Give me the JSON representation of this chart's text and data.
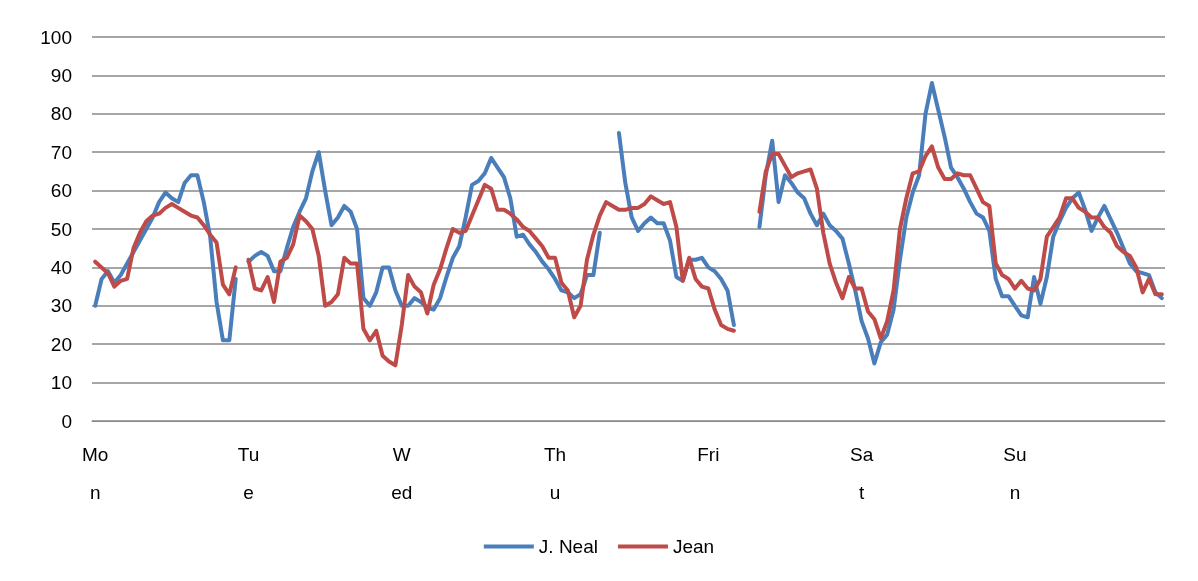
{
  "chart_data": {
    "type": "line",
    "categories": [
      "Mon",
      null,
      null,
      null,
      null,
      null,
      null,
      null,
      null,
      null,
      null,
      null,
      null,
      null,
      null,
      null,
      null,
      null,
      null,
      null,
      null,
      null,
      null,
      null,
      "Tue",
      null,
      null,
      null,
      null,
      null,
      null,
      null,
      null,
      null,
      null,
      null,
      null,
      null,
      null,
      null,
      null,
      null,
      null,
      null,
      null,
      null,
      null,
      null,
      "Wed",
      null,
      null,
      null,
      null,
      null,
      null,
      null,
      null,
      null,
      null,
      null,
      null,
      null,
      null,
      null,
      null,
      null,
      null,
      null,
      null,
      null,
      null,
      null,
      "Thu",
      null,
      null,
      null,
      null,
      null,
      null,
      null,
      null,
      null,
      null,
      null,
      null,
      null,
      null,
      null,
      null,
      null,
      null,
      null,
      null,
      null,
      null,
      null,
      "Fri",
      null,
      null,
      null,
      null,
      null,
      null,
      null,
      null,
      null,
      null,
      null,
      null,
      null,
      null,
      null,
      null,
      null,
      null,
      null,
      null,
      null,
      null,
      null,
      "Sat",
      null,
      null,
      null,
      null,
      null,
      null,
      null,
      null,
      null,
      null,
      null,
      null,
      null,
      null,
      null,
      null,
      null,
      null,
      null,
      null,
      null,
      null,
      null,
      "Sun",
      null,
      null,
      null,
      null,
      null,
      null,
      null,
      null,
      null,
      null,
      null,
      null,
      null,
      null,
      null,
      null,
      null,
      null,
      null,
      null,
      null,
      null,
      null
    ],
    "series": [
      {
        "name": "J. Neal",
        "color": "#4a7ebb",
        "values": [
          30,
          37,
          39,
          36,
          38,
          41,
          44,
          47,
          50,
          53,
          57,
          59.5,
          58,
          57,
          62,
          64,
          64,
          57,
          48,
          31,
          21,
          21,
          37,
          null,
          41.5,
          43,
          44,
          43,
          39,
          39,
          45,
          50.5,
          54.5,
          58,
          65,
          70,
          60,
          51,
          53,
          56,
          54.5,
          50,
          32,
          30,
          33.5,
          40,
          40,
          34,
          30,
          30,
          32,
          31,
          29.5,
          29,
          32,
          37.5,
          42.5,
          45.5,
          53,
          61.5,
          62.5,
          64.5,
          68.5,
          66,
          63.5,
          58,
          48,
          48.5,
          46,
          44,
          41.5,
          39.5,
          37,
          34,
          33.5,
          32,
          33,
          38,
          38,
          49,
          null,
          null,
          75,
          62,
          53,
          49.5,
          51.5,
          53,
          51.5,
          51.5,
          47,
          37.5,
          36.5,
          42,
          42,
          42.5,
          40,
          39,
          37,
          34,
          25,
          null,
          null,
          null,
          50.5,
          64,
          73,
          57,
          64,
          62,
          59.5,
          58,
          54,
          51,
          54,
          51,
          49.5,
          47.5,
          41,
          34,
          26,
          21.5,
          15,
          20.5,
          22.5,
          29,
          42,
          53,
          59.5,
          64,
          80,
          88,
          81,
          74,
          66,
          63.5,
          60.5,
          57,
          54,
          53,
          49.5,
          37,
          32.5,
          32.5,
          30,
          27.5,
          27,
          37.5,
          30.5,
          37.5,
          48,
          52,
          55.5,
          58,
          59.5,
          55,
          49.5,
          53,
          56,
          52.5,
          49,
          45,
          41,
          39,
          38.5,
          38,
          33.5,
          32
        ]
      },
      {
        "name": "Jean",
        "color": "#be4b48",
        "values": [
          41.5,
          40,
          38.5,
          35,
          36.5,
          37,
          45,
          49,
          52,
          53.5,
          54,
          55.5,
          56.5,
          55.5,
          54.5,
          53.5,
          53,
          51,
          48.5,
          46.5,
          35.5,
          33,
          40,
          null,
          42,
          34.5,
          34,
          37.5,
          31,
          41.5,
          42.5,
          46,
          53.5,
          52,
          50,
          43,
          30,
          31,
          33,
          42.5,
          41,
          41,
          24,
          21,
          23.5,
          17,
          15.5,
          14.5,
          25,
          38,
          35,
          33.5,
          28,
          35.5,
          39.5,
          45,
          50,
          49,
          49.5,
          53.5,
          57.5,
          61.5,
          60.5,
          55,
          55,
          54,
          52.5,
          50.5,
          49.5,
          47.5,
          45.5,
          42.5,
          42.5,
          36,
          34,
          27,
          30,
          42,
          48.5,
          53.5,
          57,
          56,
          55,
          55,
          55.5,
          55.5,
          56.5,
          58.5,
          57.5,
          56.5,
          57,
          50.5,
          36.5,
          42.5,
          37,
          35,
          34.5,
          29,
          25,
          24,
          23.5,
          null,
          null,
          null,
          54.5,
          65,
          69.5,
          69.5,
          66.5,
          63.5,
          64.5,
          65,
          65.5,
          60.5,
          49,
          41,
          36,
          32,
          37.5,
          34.5,
          34.5,
          28.5,
          26.5,
          21.5,
          26,
          34,
          50,
          58,
          64.5,
          65,
          69,
          71.5,
          66,
          63,
          63,
          64.5,
          64,
          64,
          60.5,
          57,
          56,
          41,
          38,
          37,
          34.5,
          36.5,
          34.5,
          34,
          37,
          48,
          50.5,
          53,
          58,
          58,
          55.5,
          54.5,
          53,
          53,
          50.5,
          49,
          45.5,
          44,
          43,
          40,
          33.5,
          37,
          33,
          33
        ]
      }
    ],
    "ylim": [
      0,
      100
    ],
    "yticks": [
      0,
      10,
      20,
      30,
      40,
      50,
      60,
      70,
      80,
      90,
      100
    ],
    "grid": "y",
    "legend": "bottom",
    "marker": "none",
    "line_style": "solid"
  }
}
